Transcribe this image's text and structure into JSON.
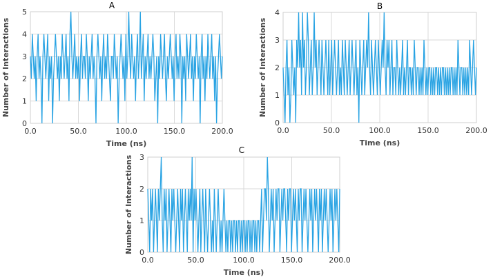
{
  "colors": {
    "series": "#29a3e3",
    "grid": "#d9d9d9",
    "text": "#333333"
  },
  "chart_data": [
    {
      "type": "line",
      "panel_label": "A",
      "xlabel": "Time (ns)",
      "ylabel": "Number of Interactions",
      "xlim": [
        0,
        200
      ],
      "ylim": [
        0,
        5
      ],
      "x_ticks": [
        "0.0",
        "50.0",
        "100.0",
        "150.0",
        "200.0"
      ],
      "y_ticks": [
        "0",
        "1",
        "2",
        "3",
        "4",
        "5"
      ],
      "grid": true,
      "series": [
        {
          "values": [
            3,
            2,
            4,
            3,
            2,
            3,
            1,
            3,
            4,
            2,
            3,
            2,
            0,
            3,
            4,
            3,
            2,
            3,
            4,
            1,
            3,
            2,
            3,
            0,
            2,
            3,
            4,
            3,
            2,
            3,
            1,
            3,
            2,
            4,
            3,
            2,
            3,
            4,
            2,
            3,
            1,
            4,
            5,
            3,
            2,
            3,
            4,
            2,
            3,
            2,
            3,
            1,
            3,
            4,
            2,
            3,
            3,
            2,
            4,
            3,
            1,
            3,
            2,
            3,
            4,
            2,
            3,
            2,
            0,
            3,
            4,
            3,
            2,
            3,
            1,
            3,
            4,
            2,
            3,
            2,
            4,
            3,
            2,
            1,
            3,
            3,
            2,
            4,
            3,
            2,
            3,
            0,
            2,
            3,
            4,
            3,
            2,
            3,
            1,
            4,
            2,
            3,
            5,
            3,
            2,
            4,
            3,
            2,
            3,
            1,
            3,
            4,
            2,
            3,
            5,
            2,
            3,
            4,
            1,
            3,
            2,
            3,
            4,
            2,
            3,
            2,
            3,
            4,
            3,
            1,
            2,
            3,
            0,
            3,
            2,
            4,
            3,
            2,
            3,
            4,
            2,
            1,
            3,
            2,
            3,
            4,
            3,
            2,
            3,
            1,
            3,
            4,
            2,
            3,
            2,
            4,
            3,
            0,
            3,
            2,
            3,
            1,
            4,
            3,
            2,
            3,
            4,
            2,
            3,
            1,
            3,
            2,
            4,
            3,
            2,
            3,
            0,
            3,
            4,
            2,
            3,
            1,
            3,
            2,
            4,
            3,
            2,
            3,
            4,
            2,
            3,
            1,
            3,
            0,
            2,
            3,
            4,
            3,
            2,
            3
          ]
        }
      ]
    },
    {
      "type": "line",
      "panel_label": "B",
      "xlabel": "Time (ns)",
      "ylabel": "Number of Interactions",
      "xlim": [
        0,
        200
      ],
      "ylim": [
        0,
        4
      ],
      "x_ticks": [
        "0.0",
        "50.0",
        "100.0",
        "150.0",
        "200.0"
      ],
      "y_ticks": [
        "0",
        "1",
        "2",
        "3",
        "4"
      ],
      "grid": true,
      "series": [
        {
          "values": [
            2,
            1,
            0,
            2,
            3,
            1,
            2,
            0,
            1,
            3,
            2,
            1,
            2,
            0,
            3,
            2,
            4,
            2,
            3,
            1,
            4,
            2,
            3,
            1,
            2,
            4,
            3,
            1,
            2,
            3,
            1,
            2,
            4,
            2,
            3,
            1,
            2,
            3,
            2,
            1,
            3,
            2,
            1,
            2,
            3,
            2,
            1,
            3,
            1,
            2,
            3,
            1,
            2,
            3,
            2,
            1,
            2,
            3,
            1,
            2,
            1,
            3,
            2,
            1,
            3,
            2,
            1,
            2,
            3,
            1,
            2,
            3,
            2,
            1,
            2,
            3,
            1,
            2,
            0,
            3,
            2,
            1,
            2,
            3,
            1,
            2,
            3,
            2,
            4,
            2,
            1,
            3,
            2,
            1,
            2,
            3,
            2,
            1,
            3,
            2,
            1,
            2,
            3,
            2,
            4,
            2,
            1,
            3,
            2,
            3,
            1,
            2,
            3,
            1,
            2,
            2,
            1,
            3,
            2,
            1,
            2,
            1,
            2,
            3,
            1,
            2,
            1,
            2,
            3,
            1,
            2,
            2,
            1,
            2,
            1,
            3,
            2,
            1,
            2,
            2,
            1,
            2,
            1,
            2,
            1,
            3,
            2,
            1,
            2,
            1,
            2,
            2,
            1,
            2,
            1,
            2,
            1,
            2,
            2,
            1,
            2,
            1,
            2,
            1,
            2,
            2,
            1,
            2,
            1,
            2,
            1,
            2,
            1,
            2,
            2,
            1,
            2,
            1,
            2,
            1,
            3,
            2,
            1,
            2,
            2,
            1,
            2,
            1,
            2,
            1,
            2,
            1,
            3,
            2,
            1,
            2,
            3,
            2,
            1,
            2
          ]
        }
      ]
    },
    {
      "type": "line",
      "panel_label": "C",
      "xlabel": "Time (ns)",
      "ylabel": "Number of Interactions",
      "xlim": [
        0,
        200
      ],
      "ylim": [
        0,
        3
      ],
      "x_ticks": [
        "0.0",
        "50.0",
        "100.0",
        "150.0",
        "200.0"
      ],
      "y_ticks": [
        "0",
        "1",
        "2",
        "3"
      ],
      "grid": true,
      "series": [
        {
          "values": [
            2,
            1,
            0,
            2,
            1,
            2,
            0,
            1,
            2,
            1,
            0,
            2,
            1,
            2,
            3,
            1,
            0,
            2,
            1,
            2,
            0,
            1,
            2,
            1,
            0,
            2,
            1,
            2,
            1,
            0,
            1,
            2,
            1,
            0,
            2,
            1,
            2,
            0,
            1,
            2,
            1,
            0,
            2,
            1,
            2,
            1,
            3,
            0,
            2,
            1,
            2,
            1,
            0,
            1,
            2,
            0,
            1,
            2,
            1,
            0,
            2,
            1,
            0,
            1,
            2,
            1,
            0,
            1,
            0,
            2,
            1,
            0,
            1,
            2,
            1,
            0,
            1,
            0,
            1,
            2,
            1,
            0,
            1,
            0,
            1,
            1,
            0,
            1,
            0,
            1,
            1,
            0,
            1,
            0,
            1,
            1,
            0,
            1,
            0,
            1,
            1,
            0,
            1,
            0,
            1,
            1,
            0,
            1,
            0,
            1,
            1,
            0,
            1,
            0,
            1,
            1,
            0,
            1,
            2,
            0,
            1,
            2,
            2,
            1,
            3,
            2,
            0,
            1,
            2,
            1,
            2,
            0,
            1,
            2,
            1,
            2,
            2,
            0,
            1,
            2,
            1,
            2,
            2,
            1,
            0,
            2,
            1,
            2,
            2,
            0,
            1,
            2,
            1,
            2,
            1,
            0,
            2,
            1,
            2,
            2,
            0,
            1,
            2,
            1,
            2,
            1,
            0,
            1,
            2,
            1,
            2,
            0,
            1,
            2,
            1,
            2,
            1,
            0,
            2,
            1,
            2,
            0,
            1,
            2,
            1,
            2,
            1,
            0,
            1,
            2,
            1,
            2,
            0,
            1,
            2,
            1,
            2,
            1,
            0,
            2
          ]
        }
      ]
    }
  ]
}
